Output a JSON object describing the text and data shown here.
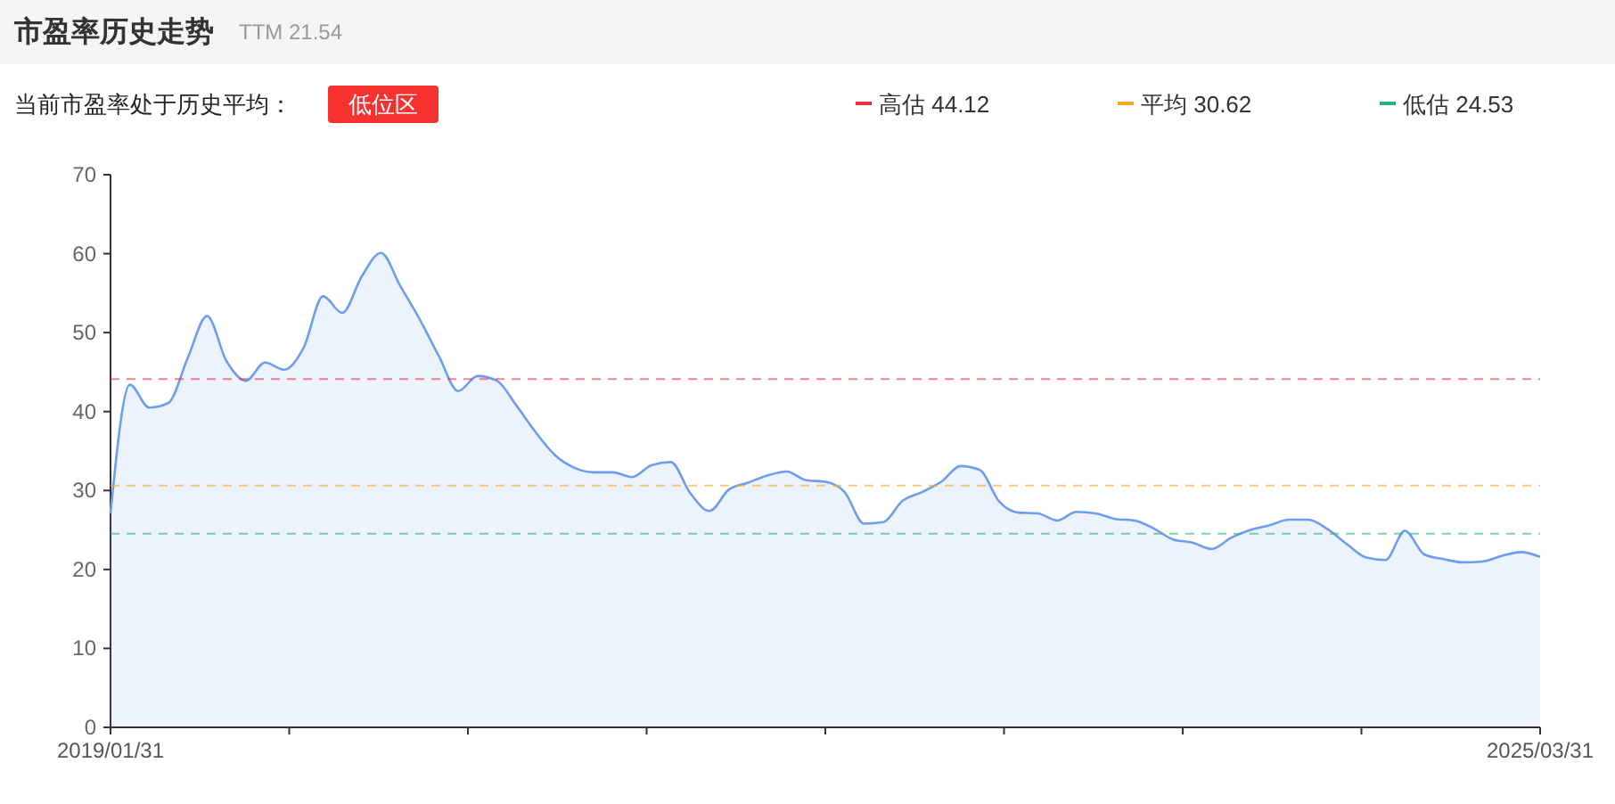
{
  "chart_data": {
    "type": "area",
    "title": "市盈率历史走势",
    "subtitle": "TTM 21.54",
    "annotations": [
      "当前市盈率处于历史平均：",
      "低位区"
    ],
    "categories": [
      "2019/01/31",
      null,
      null,
      null,
      null,
      null,
      null,
      null,
      null,
      null,
      null,
      null,
      null,
      null,
      null,
      null,
      null,
      null,
      null,
      null,
      null,
      null,
      null,
      null,
      null,
      null,
      null,
      null,
      null,
      null,
      null,
      null,
      null,
      null,
      null,
      null,
      null,
      null,
      null,
      null,
      null,
      null,
      null,
      null,
      null,
      null,
      null,
      null,
      null,
      null,
      null,
      null,
      null,
      null,
      null,
      null,
      null,
      null,
      null,
      null,
      null,
      null,
      null,
      null,
      null,
      null,
      null,
      null,
      null,
      null,
      null,
      null,
      null,
      null,
      "2025/03/31"
    ],
    "series": [
      {
        "color": "#6f9ded",
        "values": [
          27.1,
          43.4,
          40.5,
          41.1,
          46.8,
          52.1,
          46.4,
          43.9,
          46.2,
          45.3,
          48.1,
          54.6,
          52.5,
          57.1,
          60.1,
          55.9,
          51.7,
          47.0,
          42.6,
          44.5,
          43.9,
          40.8,
          37.4,
          34.5,
          32.9,
          32.3,
          32.3,
          31.7,
          33.2,
          33.6,
          29.7,
          27.4,
          30.1,
          31.0,
          31.9,
          32.4,
          31.3,
          31.1,
          29.8,
          25.8,
          26.0,
          28.7,
          29.8,
          31.1,
          33.1,
          32.6,
          28.6,
          27.2,
          27.1,
          26.2,
          27.3,
          27.1,
          26.4,
          26.2,
          25.2,
          23.8,
          23.4,
          22.6,
          24.0,
          25.0,
          25.6,
          26.3,
          26.3,
          25.1,
          23.2,
          21.5,
          21.2,
          24.9,
          21.9,
          21.3,
          20.9,
          21.0,
          21.7,
          22.2,
          21.6
        ]
      }
    ],
    "ylim": [
      0,
      70
    ],
    "yticks": [
      0,
      10,
      20,
      30,
      40,
      50,
      60,
      70
    ],
    "legend": "top right",
    "ref_lines": [
      {
        "axis": "y",
        "value": 44.12,
        "label": "高估 44.12",
        "color": "#f0303a",
        "line_style": "dashed"
      },
      {
        "axis": "y",
        "value": 30.62,
        "label": "平均 30.62",
        "color": "#f5a623",
        "line_style": "dashed"
      },
      {
        "axis": "y",
        "value": 24.53,
        "label": "低估 24.53",
        "color": "#27b47a",
        "line_style": "dashed"
      }
    ]
  }
}
